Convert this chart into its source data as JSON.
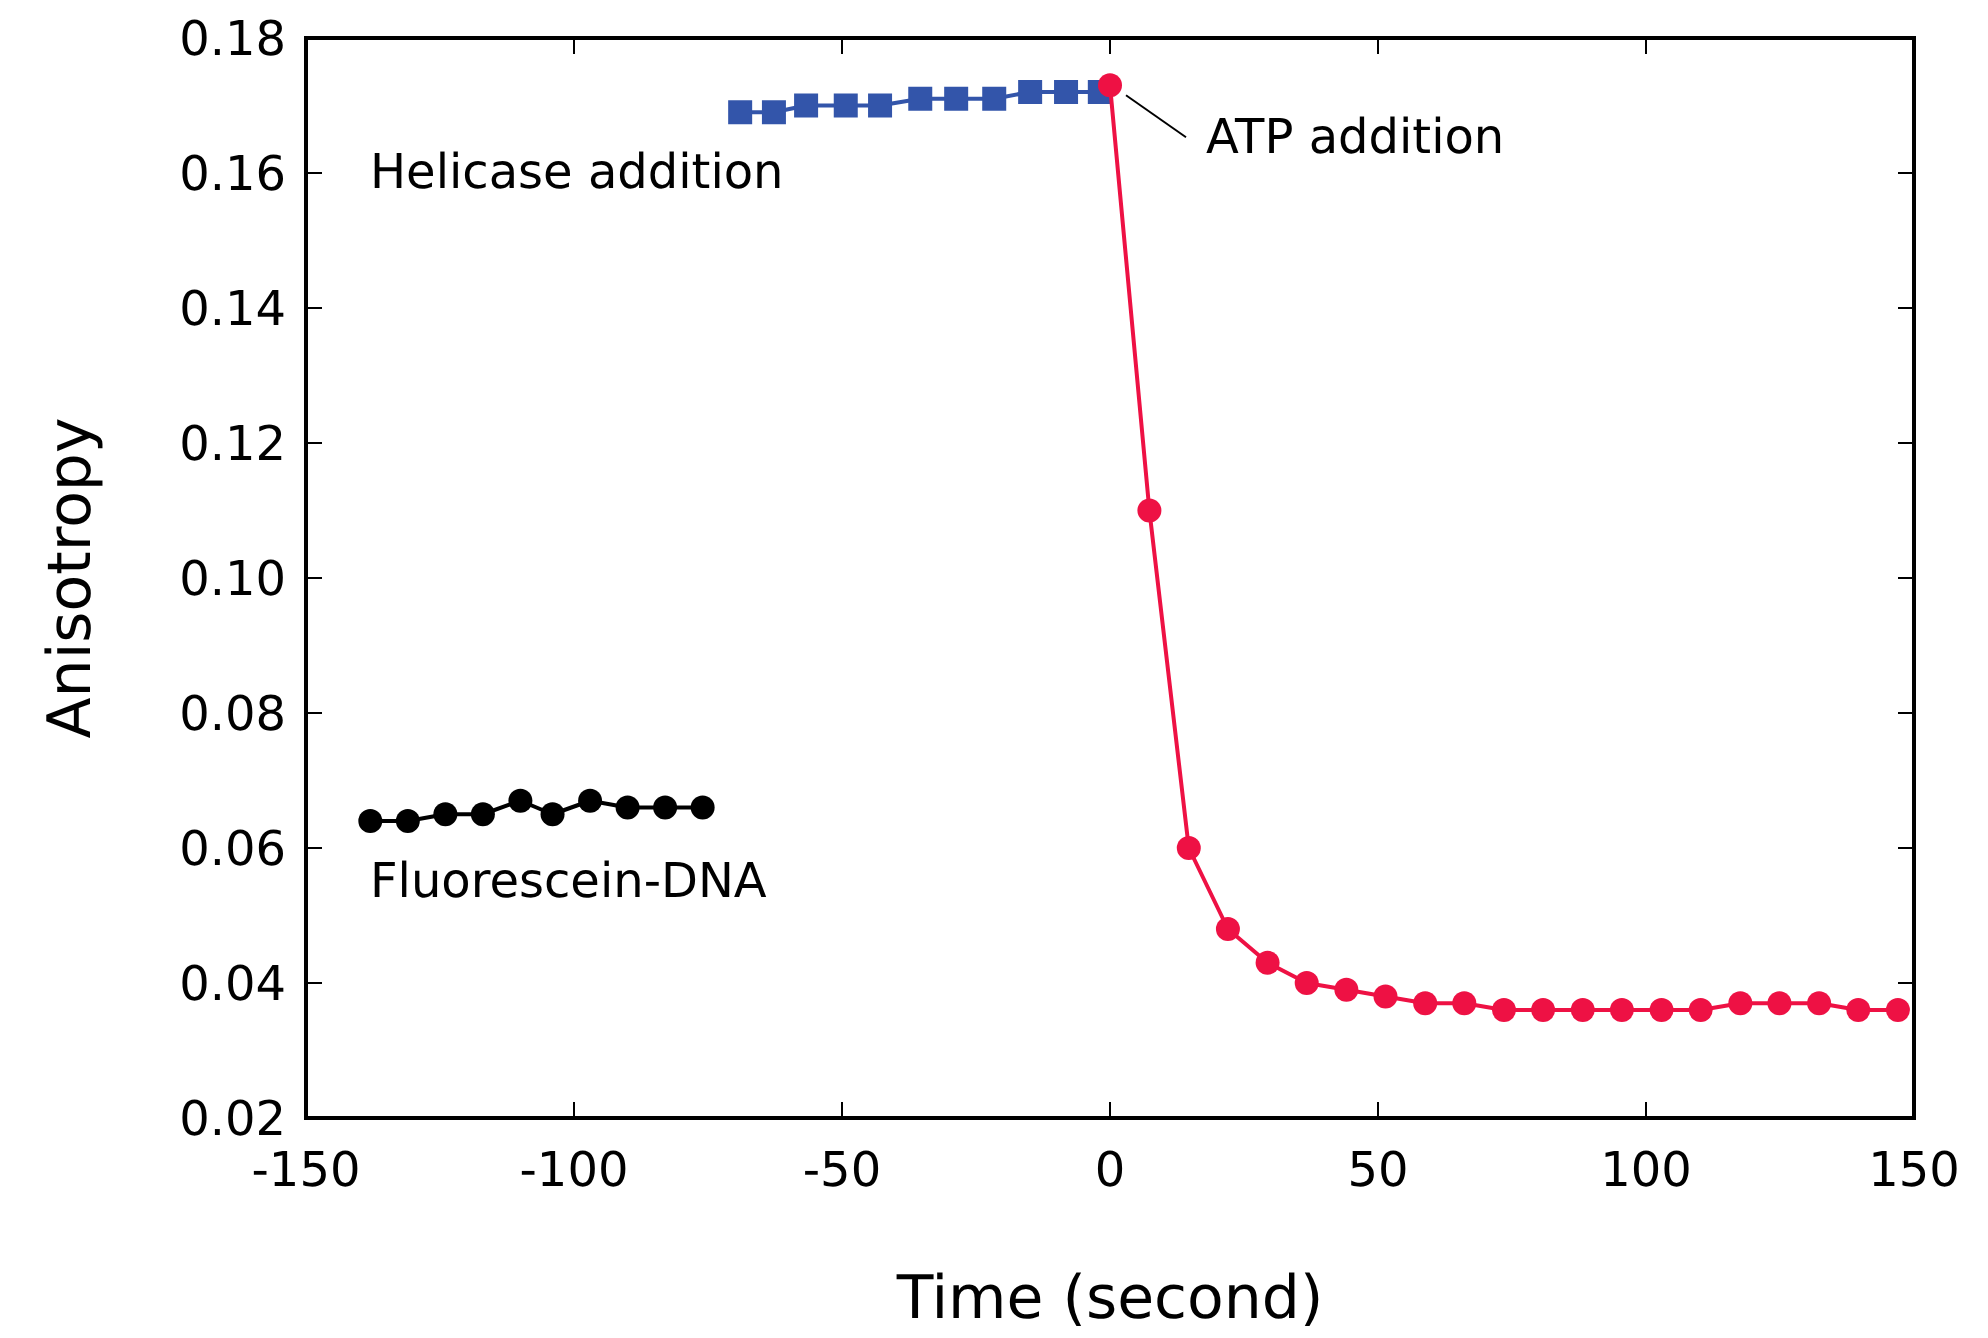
{
  "chart_data": {
    "type": "line",
    "xlabel": "Time (second)",
    "ylabel": "Anisotropy",
    "xlim": [
      -150,
      150
    ],
    "xticks": [
      -150,
      -100,
      -50,
      0,
      50,
      100,
      150
    ],
    "ylim": [
      0.02,
      0.18
    ],
    "yticks": [
      {
        "value": 0.02,
        "label": "0.02"
      },
      {
        "value": 0.04,
        "label": "0.04"
      },
      {
        "value": 0.06,
        "label": "0.06"
      },
      {
        "value": 0.08,
        "label": "0.08"
      },
      {
        "value": 0.1,
        "label": "0.10"
      },
      {
        "value": 0.12,
        "label": "0.12"
      },
      {
        "value": 0.14,
        "label": "0.14"
      },
      {
        "value": 0.16,
        "label": "0.16"
      },
      {
        "value": 0.18,
        "label": "0.18"
      }
    ],
    "grid": false,
    "line_style": "solid",
    "series": [
      {
        "name": "Fluorescein-DNA",
        "color": "#000000",
        "marker": "circle",
        "x": [
          -138,
          -131,
          -124,
          -117,
          -110,
          -104,
          -97,
          -90,
          -83,
          -76
        ],
        "values": [
          0.064,
          0.064,
          0.065,
          0.065,
          0.067,
          0.065,
          0.067,
          0.066,
          0.066,
          0.066
        ]
      },
      {
        "name": "Helicase addition",
        "color": "#3355aa",
        "marker": "square",
        "x": [
          -69,
          -62.7,
          -56.7,
          -49.3,
          -42.9,
          -35.4,
          -28.7,
          -21.6,
          -14.9,
          -8.2,
          -1.9
        ],
        "values": [
          0.169,
          0.169,
          0.17,
          0.17,
          0.17,
          0.171,
          0.171,
          0.171,
          0.172,
          0.172,
          0.172
        ]
      },
      {
        "color": "#ee1144",
        "marker": "circle",
        "x": [
          0,
          7.35,
          14.7,
          22,
          29.4,
          36.7,
          44.1,
          51.4,
          58.8,
          66.1,
          73.5,
          80.8,
          88.2,
          95.5,
          102.9,
          110.2,
          117.6,
          124.9,
          132.3,
          139.6,
          147
        ],
        "values": [
          0.173,
          0.11,
          0.06,
          0.048,
          0.043,
          0.04,
          0.039,
          0.038,
          0.037,
          0.037,
          0.036,
          0.036,
          0.036,
          0.036,
          0.036,
          0.036,
          0.037,
          0.037,
          0.037,
          0.036,
          0.036
        ]
      }
    ],
    "annotations": [
      {
        "text": "ATP addition",
        "x": 0,
        "y": 0.173
      }
    ]
  }
}
